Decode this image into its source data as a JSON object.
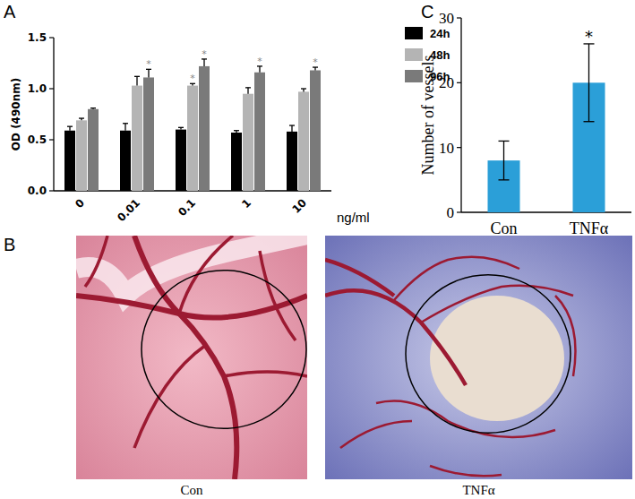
{
  "chart_data": [
    {
      "type": "bar",
      "categories": [
        "0",
        "0.01",
        "0.1",
        "1",
        "10"
      ],
      "xlabel": "ng/ml",
      "ylabel": "OD (490nm)",
      "ylim": [
        0,
        1.5
      ],
      "yticks": [
        {
          "value": 0,
          "label": "0.0"
        },
        {
          "value": 0.5,
          "label": "0.5"
        },
        {
          "value": 1,
          "label": "1.0"
        },
        {
          "value": 1.5,
          "label": "1.5"
        }
      ],
      "legend": "right",
      "series": [
        {
          "name": "24h",
          "color": "#000000",
          "values": [
            0.59,
            0.59,
            0.6,
            0.57,
            0.58
          ],
          "errors": [
            0.04,
            0.07,
            0.02,
            0.02,
            0.06
          ],
          "significance": [
            null,
            null,
            null,
            null,
            null
          ]
        },
        {
          "name": "48h",
          "color": "#b4b4b4",
          "values": [
            0.69,
            1.03,
            1.03,
            0.95,
            0.97
          ],
          "errors": [
            0.02,
            0.09,
            0.02,
            0.06,
            0.03
          ],
          "significance": [
            null,
            null,
            "*",
            null,
            null
          ]
        },
        {
          "name": "96h",
          "color": "#7a7a7a",
          "values": [
            0.8,
            1.11,
            1.22,
            1.16,
            1.18
          ],
          "errors": [
            0.01,
            0.08,
            0.07,
            0.06,
            0.03
          ],
          "significance": [
            null,
            "*",
            "*",
            "*",
            "*"
          ]
        }
      ]
    },
    {
      "type": "bar",
      "categories": [
        "Con",
        "TNFα"
      ],
      "ylabel": "Number of vessels",
      "ylim": [
        0,
        30
      ],
      "yticks": [
        0,
        10,
        20,
        30
      ],
      "color": "#2b9fd8",
      "values": [
        8,
        20
      ],
      "errors": [
        3,
        6
      ],
      "significance": [
        null,
        "*"
      ]
    }
  ],
  "panel_labels": [
    "A",
    "B",
    "C"
  ],
  "photo_captions": [
    "Con",
    "TNFα"
  ]
}
